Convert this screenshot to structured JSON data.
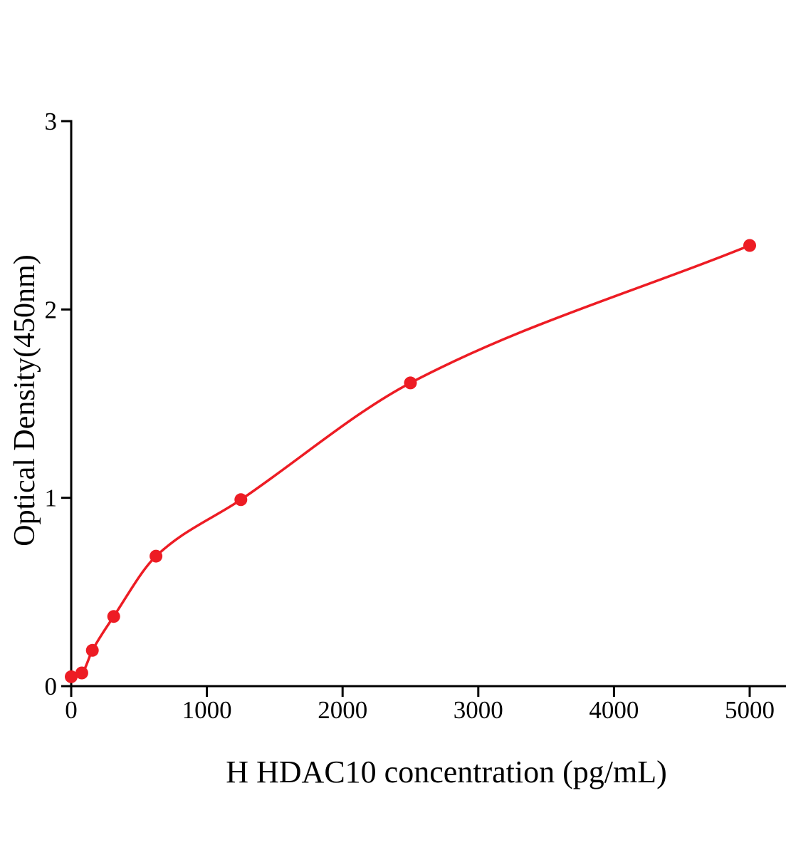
{
  "chart_data": {
    "type": "scatter",
    "title": "",
    "xlabel": "H HDAC10 concentration (pg/mL)",
    "ylabel": "Optical Density(450nm)",
    "x": [
      0,
      78,
      156,
      313,
      625,
      1250,
      2500,
      5000
    ],
    "y": [
      0.05,
      0.07,
      0.19,
      0.37,
      0.69,
      0.99,
      1.61,
      2.34
    ],
    "x_ticks": [
      0,
      1000,
      2000,
      3000,
      4000,
      5000
    ],
    "y_ticks": [
      0,
      1,
      2,
      3
    ],
    "xlim": [
      0,
      5270
    ],
    "ylim": [
      0,
      3
    ],
    "grid": false,
    "legend": "none",
    "line_style": "smooth-fit-curve",
    "marker": "filled-circle",
    "colors": {
      "curve": "#ed1c24",
      "points": "#ed1c24",
      "axis": "#000000",
      "background": "#ffffff"
    }
  }
}
